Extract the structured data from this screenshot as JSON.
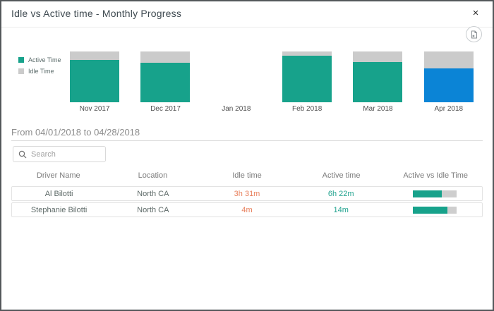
{
  "modal": {
    "title": "Idle vs Active time - Monthly Progress",
    "close_glyph": "×"
  },
  "period": {
    "label": "From 04/01/2018 to 04/28/2018"
  },
  "search": {
    "placeholder": "Search"
  },
  "legend": [
    {
      "label": "Active Time",
      "color": "#17a28b"
    },
    {
      "label": "Idle Time",
      "color": "#cbcbcb"
    }
  ],
  "chart_data": {
    "type": "bar",
    "stacked": true,
    "percent": true,
    "title": "Idle vs Active time - Monthly Progress",
    "categories": [
      "Nov 2017",
      "Dec 2017",
      "Jan 2018",
      "Feb 2018",
      "Mar 2018",
      "Apr 2018"
    ],
    "series": [
      {
        "name": "Active Time",
        "values": [
          83,
          78,
          null,
          92,
          79,
          67
        ]
      },
      {
        "name": "Idle Time",
        "values": [
          17,
          22,
          null,
          8,
          21,
          33
        ]
      }
    ],
    "highlighted_category": "Apr 2018",
    "colors": {
      "active": "#17a28b",
      "idle": "#cbcbcb",
      "highlight": "#0b84d6"
    },
    "legend_position": "left",
    "grid": false,
    "ylim": [
      0,
      100
    ]
  },
  "table": {
    "columns": [
      "Driver Name",
      "Location",
      "Idle time",
      "Active time",
      "Active vs Idle Time"
    ],
    "rows": [
      {
        "driver": "Al Bilotti",
        "location": "North CA",
        "idle": "3h 31m",
        "active": "6h 22m",
        "active_pct": 65
      },
      {
        "driver": "Stephanie Bilotti",
        "location": "North CA",
        "idle": "4m",
        "active": "14m",
        "active_pct": 78
      }
    ],
    "bar_colors": {
      "fill": "#17a28b",
      "track": "#cecece"
    }
  },
  "colors": {
    "accent_teal": "#17a28b",
    "accent_blue": "#0b84d6",
    "idle_gray": "#cbcbcb",
    "idle_text": "#e8805d",
    "active_text": "#21a38f"
  }
}
